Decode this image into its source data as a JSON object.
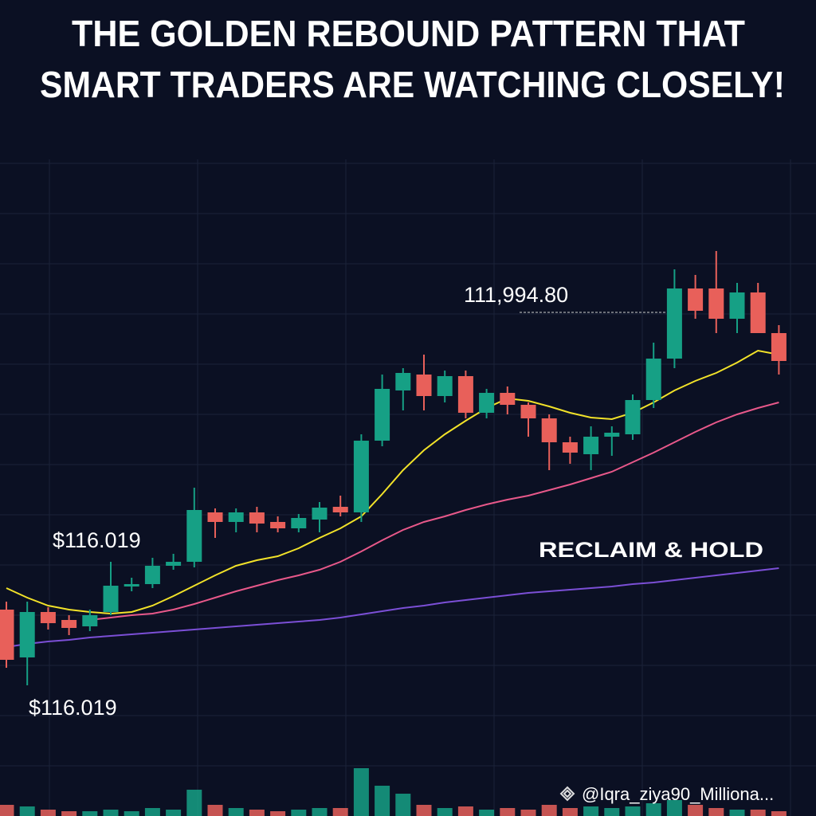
{
  "chart_data": {
    "type": "candlestick",
    "title": [
      "THE GOLDEN REBOUND PATTERN THAT",
      "SMART TRADERS ARE WATCHING CLOSELY!"
    ],
    "up_color": "#16a085",
    "down_color": "#e8605a",
    "grid": true,
    "ylim": [
      0,
      82.4
    ],
    "vlim": [
      0,
      100
    ],
    "open": [
      25.9,
      19.9,
      25.6,
      24.6,
      23.8,
      25.6,
      28.8,
      29.1,
      31.4,
      31.9,
      38.1,
      36.9,
      38.1,
      36.9,
      36.1,
      37.2,
      38.8,
      38.1,
      47.1,
      53.4,
      55.4,
      52.7,
      55.2,
      50.6,
      53.1,
      51.6,
      49.9,
      46.9,
      45.4,
      47.6,
      47.9,
      52.2,
      57.4,
      66.2,
      66.2,
      62.4,
      65.7,
      60.6
    ],
    "high": [
      26.9,
      26.9,
      26.2,
      25.2,
      25.9,
      31.9,
      29.9,
      32.4,
      32.9,
      41.2,
      38.6,
      38.6,
      38.8,
      37.6,
      37.9,
      39.4,
      40.2,
      47.9,
      55.4,
      56.2,
      57.9,
      55.9,
      55.9,
      53.6,
      53.9,
      51.9,
      50.4,
      47.6,
      48.9,
      48.9,
      52.9,
      59.4,
      68.6,
      67.9,
      70.9,
      66.9,
      66.9,
      61.6
    ],
    "low": [
      18.6,
      16.4,
      23.4,
      22.7,
      23.2,
      25.2,
      28.2,
      28.6,
      30.9,
      31.2,
      34.9,
      35.6,
      35.6,
      35.6,
      35.6,
      35.6,
      37.6,
      36.9,
      46.4,
      50.9,
      50.9,
      51.9,
      49.9,
      49.9,
      50.4,
      47.6,
      43.4,
      44.2,
      43.4,
      45.2,
      47.2,
      51.2,
      56.2,
      62.4,
      60.6,
      60.6,
      60.6,
      55.4
    ],
    "close": [
      19.6,
      25.6,
      24.2,
      23.6,
      25.2,
      28.9,
      29.1,
      31.4,
      31.9,
      38.4,
      36.9,
      38.1,
      36.7,
      36.1,
      37.4,
      38.7,
      38.1,
      47.1,
      53.6,
      55.6,
      52.7,
      55.2,
      50.6,
      53.1,
      51.6,
      49.9,
      46.9,
      45.6,
      47.6,
      48.1,
      52.2,
      57.4,
      66.2,
      63.4,
      62.4,
      65.7,
      60.6,
      57.1
    ],
    "volume": [
      14,
      12,
      8,
      6,
      6,
      8,
      6,
      10,
      8,
      33,
      14,
      10,
      8,
      6,
      8,
      10,
      10,
      60,
      38,
      28,
      14,
      10,
      12,
      8,
      10,
      8,
      14,
      10,
      12,
      10,
      12,
      16,
      20,
      14,
      10,
      8,
      8,
      6
    ],
    "series": [
      {
        "color": "#f2e229",
        "values": [
          28.6,
          27.4,
          26.4,
          25.9,
          25.6,
          25.4,
          25.6,
          26.4,
          27.6,
          28.9,
          30.2,
          31.4,
          32.1,
          32.6,
          33.6,
          34.9,
          36.1,
          37.6,
          40.4,
          43.4,
          45.9,
          47.9,
          49.6,
          51.2,
          52.4,
          52.1,
          51.4,
          50.6,
          50.0,
          49.8,
          50.6,
          51.9,
          53.4,
          54.6,
          55.6,
          56.9,
          58.4,
          57.9
        ]
      },
      {
        "color": "#e8588a",
        "values": [
          null,
          null,
          null,
          null,
          24.6,
          24.9,
          25.2,
          25.4,
          25.9,
          26.6,
          27.4,
          28.2,
          28.9,
          29.6,
          30.2,
          30.9,
          31.9,
          33.2,
          34.6,
          35.9,
          36.9,
          37.6,
          38.4,
          39.1,
          39.7,
          40.2,
          40.9,
          41.6,
          42.4,
          43.2,
          44.4,
          45.6,
          46.9,
          48.2,
          49.4,
          50.4,
          51.2,
          51.9
        ]
      },
      {
        "color": "#7b4fd6",
        "values": [
          21.2,
          21.6,
          21.9,
          22.1,
          22.4,
          22.6,
          22.8,
          23.0,
          23.2,
          23.4,
          23.6,
          23.8,
          24.0,
          24.2,
          24.4,
          24.6,
          24.9,
          25.3,
          25.7,
          26.1,
          26.4,
          26.8,
          27.1,
          27.4,
          27.7,
          28.0,
          28.2,
          28.4,
          28.6,
          28.8,
          29.1,
          29.3,
          29.6,
          29.9,
          30.2,
          30.5,
          30.8,
          31.1
        ]
      }
    ],
    "annotations": [
      "$116.019",
      "111,994.80",
      "$116.019",
      "RECLAIM & HOLD"
    ],
    "watermark": "@Iqra_ziya90_Milliona..."
  }
}
